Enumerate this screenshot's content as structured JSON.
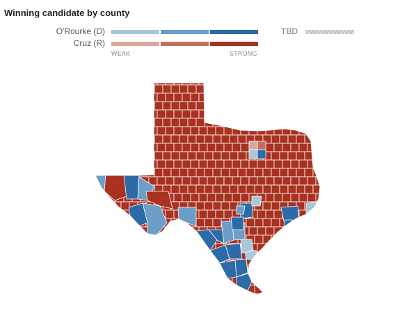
{
  "title": "Winning candidate by county",
  "legend": {
    "dem_label": "O'Rourke (D)",
    "rep_label": "Cruz (R)",
    "weak_label": "WEAK",
    "strong_label": "STRONG",
    "tbd_label": "TBD",
    "dem_colors": [
      "#a9c6dc",
      "#6c9ec9",
      "#2c6ba8"
    ],
    "rep_colors": [
      "#d9a79f",
      "#c16e5f",
      "#a8311f"
    ],
    "tbd_color": "#cccccc"
  },
  "map": {
    "state": "Texas",
    "colors": {
      "rep_strong": "#a8311f",
      "rep_mid": "#c16e5f",
      "rep_weak": "#d9a79f",
      "dem_strong": "#2c6ba8",
      "dem_mid": "#6c9ec9",
      "dem_weak": "#a9c6dc",
      "border": "#ffffff"
    }
  }
}
